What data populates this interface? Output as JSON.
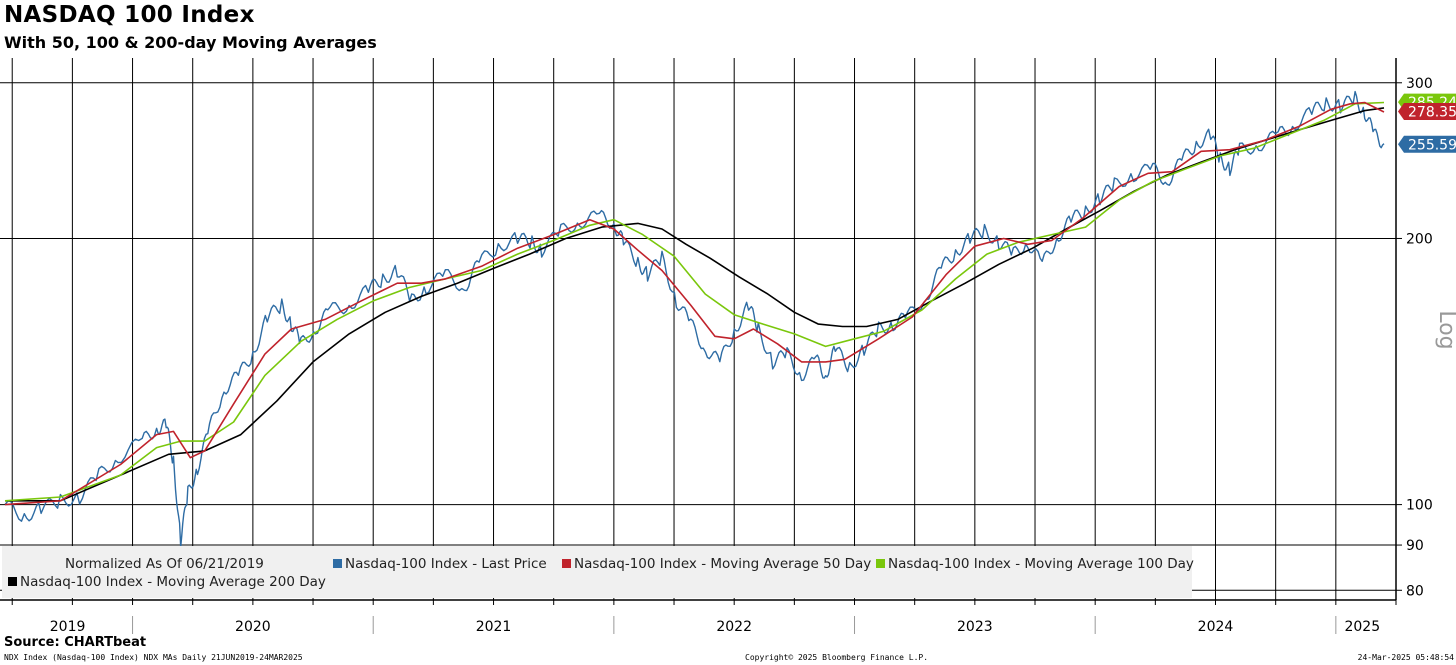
{
  "header": {
    "title": "NASDAQ 100 Index",
    "subtitle": "With 50, 100 & 200-day Moving Averages"
  },
  "footer": {
    "source": "Source: CHARTbeat",
    "left": "NDX Index (Nasdaq-100 Index) NDX MAs  Daily 21JUN2019-24MAR2025",
    "center": "Copyright© 2025 Bloomberg Finance L.P.",
    "right": "24-Mar-2025 05:48:54"
  },
  "legend": {
    "note": "Normalized As Of 06/21/2019",
    "items": [
      {
        "label": "Nasdaq-100 Index - Last Price",
        "color": "#2e6ca4"
      },
      {
        "label": "Nasdaq-100 Index - Moving Average 50 Day",
        "color": "#c0232c"
      },
      {
        "label": "Nasdaq-100 Index - Moving Average 100 Day",
        "color": "#7ac70c"
      },
      {
        "label": "Nasdaq-100 Index - Moving Average 200 Day",
        "color": "#000000"
      }
    ]
  },
  "chart_data": {
    "type": "line",
    "title": "NASDAQ 100 Index",
    "subtitle": "With 50, 100 & 200-day Moving Averages",
    "yscale": "log",
    "ylabel": "Log",
    "ylim": [
      78,
      320
    ],
    "yticks": [
      80,
      90,
      100,
      200,
      300
    ],
    "xlim": [
      2019.47,
      2025.25
    ],
    "year_labels": [
      {
        "label": "2019",
        "x": 2019.73
      },
      {
        "label": "2020",
        "x": 2020.5
      },
      {
        "label": "2021",
        "x": 2021.5
      },
      {
        "label": "2022",
        "x": 2022.5
      },
      {
        "label": "2023",
        "x": 2023.5
      },
      {
        "label": "2024",
        "x": 2024.5
      },
      {
        "label": "2025",
        "x": 2025.11
      }
    ],
    "series": [
      {
        "name": "Nasdaq-100 Index - Last Price",
        "color": "#2e6ca4",
        "last_value": "255.59",
        "points": [
          [
            2019.47,
            100
          ],
          [
            2019.55,
            97
          ],
          [
            2019.62,
            99
          ],
          [
            2019.7,
            101
          ],
          [
            2019.78,
            102
          ],
          [
            2019.86,
            108
          ],
          [
            2019.94,
            113
          ],
          [
            2020.04,
            118
          ],
          [
            2020.1,
            122
          ],
          [
            2020.14,
            123
          ],
          [
            2020.17,
            112
          ],
          [
            2020.2,
            91
          ],
          [
            2020.23,
            103
          ],
          [
            2020.27,
            110
          ],
          [
            2020.32,
            122
          ],
          [
            2020.38,
            135
          ],
          [
            2020.44,
            140
          ],
          [
            2020.5,
            148
          ],
          [
            2020.56,
            163
          ],
          [
            2020.62,
            168
          ],
          [
            2020.66,
            160
          ],
          [
            2020.7,
            152
          ],
          [
            2020.76,
            158
          ],
          [
            2020.82,
            166
          ],
          [
            2020.9,
            168
          ],
          [
            2020.98,
            175
          ],
          [
            2021.04,
            180
          ],
          [
            2021.1,
            184
          ],
          [
            2021.16,
            170
          ],
          [
            2021.22,
            176
          ],
          [
            2021.3,
            182
          ],
          [
            2021.38,
            176
          ],
          [
            2021.44,
            188
          ],
          [
            2021.52,
            196
          ],
          [
            2021.6,
            200
          ],
          [
            2021.66,
            198
          ],
          [
            2021.7,
            194
          ],
          [
            2021.78,
            204
          ],
          [
            2021.86,
            209
          ],
          [
            2021.94,
            212
          ],
          [
            2022.0,
            208
          ],
          [
            2022.04,
            198
          ],
          [
            2022.1,
            188
          ],
          [
            2022.14,
            182
          ],
          [
            2022.2,
            190
          ],
          [
            2022.26,
            170
          ],
          [
            2022.32,
            160
          ],
          [
            2022.38,
            150
          ],
          [
            2022.44,
            145
          ],
          [
            2022.5,
            157
          ],
          [
            2022.56,
            168
          ],
          [
            2022.6,
            158
          ],
          [
            2022.66,
            145
          ],
          [
            2022.72,
            148
          ],
          [
            2022.78,
            140
          ],
          [
            2022.84,
            146
          ],
          [
            2022.88,
            140
          ],
          [
            2022.92,
            150
          ],
          [
            2022.98,
            143
          ],
          [
            2023.04,
            150
          ],
          [
            2023.1,
            158
          ],
          [
            2023.16,
            160
          ],
          [
            2023.22,
            163
          ],
          [
            2023.3,
            172
          ],
          [
            2023.36,
            185
          ],
          [
            2023.42,
            193
          ],
          [
            2023.48,
            200
          ],
          [
            2023.54,
            204
          ],
          [
            2023.6,
            198
          ],
          [
            2023.66,
            192
          ],
          [
            2023.72,
            198
          ],
          [
            2023.78,
            187
          ],
          [
            2023.84,
            200
          ],
          [
            2023.9,
            210
          ],
          [
            2023.96,
            215
          ],
          [
            2024.02,
            222
          ],
          [
            2024.08,
            230
          ],
          [
            2024.16,
            236
          ],
          [
            2024.24,
            240
          ],
          [
            2024.3,
            232
          ],
          [
            2024.36,
            245
          ],
          [
            2024.42,
            256
          ],
          [
            2024.48,
            262
          ],
          [
            2024.52,
            246
          ],
          [
            2024.56,
            240
          ],
          [
            2024.6,
            252
          ],
          [
            2024.68,
            255
          ],
          [
            2024.76,
            262
          ],
          [
            2024.82,
            268
          ],
          [
            2024.9,
            278
          ],
          [
            2024.96,
            285
          ],
          [
            2025.02,
            282
          ],
          [
            2025.08,
            288
          ],
          [
            2025.12,
            278
          ],
          [
            2025.16,
            262
          ],
          [
            2025.2,
            256
          ]
        ]
      },
      {
        "name": "Nasdaq-100 Index - Moving Average 50 Day",
        "color": "#c0232c",
        "last_value": "278.35",
        "points": [
          [
            2019.47,
            100
          ],
          [
            2019.7,
            101
          ],
          [
            2019.95,
            111
          ],
          [
            2020.1,
            120
          ],
          [
            2020.17,
            121
          ],
          [
            2020.24,
            113
          ],
          [
            2020.3,
            115
          ],
          [
            2020.42,
            130
          ],
          [
            2020.55,
            148
          ],
          [
            2020.66,
            158
          ],
          [
            2020.8,
            162
          ],
          [
            2020.95,
            170
          ],
          [
            2021.1,
            178
          ],
          [
            2021.2,
            178
          ],
          [
            2021.3,
            180
          ],
          [
            2021.45,
            186
          ],
          [
            2021.6,
            195
          ],
          [
            2021.75,
            202
          ],
          [
            2021.9,
            210
          ],
          [
            2022.0,
            205
          ],
          [
            2022.1,
            194
          ],
          [
            2022.2,
            184
          ],
          [
            2022.32,
            168
          ],
          [
            2022.42,
            155
          ],
          [
            2022.5,
            154
          ],
          [
            2022.58,
            158
          ],
          [
            2022.68,
            152
          ],
          [
            2022.78,
            145
          ],
          [
            2022.88,
            145
          ],
          [
            2022.96,
            146
          ],
          [
            2023.1,
            154
          ],
          [
            2023.24,
            163
          ],
          [
            2023.38,
            182
          ],
          [
            2023.5,
            196
          ],
          [
            2023.62,
            200
          ],
          [
            2023.72,
            197
          ],
          [
            2023.82,
            199
          ],
          [
            2023.95,
            211
          ],
          [
            2024.1,
            229
          ],
          [
            2024.22,
            237
          ],
          [
            2024.32,
            238
          ],
          [
            2024.44,
            251
          ],
          [
            2024.56,
            252
          ],
          [
            2024.7,
            258
          ],
          [
            2024.85,
            268
          ],
          [
            2024.98,
            280
          ],
          [
            2025.06,
            284
          ],
          [
            2025.12,
            285
          ],
          [
            2025.2,
            278
          ]
        ]
      },
      {
        "name": "Nasdaq-100 Index - Moving Average 100 Day",
        "color": "#7ac70c",
        "last_value": "285.24",
        "points": [
          [
            2019.47,
            101
          ],
          [
            2019.7,
            102
          ],
          [
            2019.95,
            108
          ],
          [
            2020.1,
            116
          ],
          [
            2020.2,
            118
          ],
          [
            2020.3,
            118
          ],
          [
            2020.42,
            124
          ],
          [
            2020.55,
            140
          ],
          [
            2020.7,
            153
          ],
          [
            2020.85,
            162
          ],
          [
            2021.0,
            170
          ],
          [
            2021.15,
            176
          ],
          [
            2021.3,
            180
          ],
          [
            2021.45,
            184
          ],
          [
            2021.6,
            192
          ],
          [
            2021.75,
            199
          ],
          [
            2021.9,
            207
          ],
          [
            2022.0,
            210
          ],
          [
            2022.12,
            202
          ],
          [
            2022.25,
            191
          ],
          [
            2022.38,
            173
          ],
          [
            2022.5,
            164
          ],
          [
            2022.62,
            160
          ],
          [
            2022.75,
            156
          ],
          [
            2022.88,
            151
          ],
          [
            2023.0,
            154
          ],
          [
            2023.12,
            157
          ],
          [
            2023.28,
            166
          ],
          [
            2023.42,
            180
          ],
          [
            2023.55,
            192
          ],
          [
            2023.68,
            198
          ],
          [
            2023.82,
            202
          ],
          [
            2023.96,
            206
          ],
          [
            2024.1,
            221
          ],
          [
            2024.24,
            232
          ],
          [
            2024.38,
            240
          ],
          [
            2024.52,
            248
          ],
          [
            2024.66,
            253
          ],
          [
            2024.8,
            262
          ],
          [
            2024.95,
            272
          ],
          [
            2025.08,
            284
          ],
          [
            2025.2,
            285
          ]
        ]
      },
      {
        "name": "Nasdaq-100 Index - Moving Average 200 Day",
        "color": "#000000",
        "last_value": "",
        "points": [
          [
            2019.47,
            101
          ],
          [
            2019.7,
            101
          ],
          [
            2019.95,
            108
          ],
          [
            2020.15,
            114
          ],
          [
            2020.3,
            115
          ],
          [
            2020.45,
            120
          ],
          [
            2020.6,
            131
          ],
          [
            2020.75,
            145
          ],
          [
            2020.9,
            156
          ],
          [
            2021.05,
            165
          ],
          [
            2021.2,
            172
          ],
          [
            2021.35,
            178
          ],
          [
            2021.5,
            185
          ],
          [
            2021.65,
            192
          ],
          [
            2021.8,
            200
          ],
          [
            2021.95,
            206
          ],
          [
            2022.1,
            208
          ],
          [
            2022.2,
            205
          ],
          [
            2022.3,
            197
          ],
          [
            2022.4,
            190
          ],
          [
            2022.52,
            181
          ],
          [
            2022.64,
            173
          ],
          [
            2022.75,
            165
          ],
          [
            2022.85,
            160
          ],
          [
            2022.95,
            159
          ],
          [
            2023.05,
            159
          ],
          [
            2023.18,
            162
          ],
          [
            2023.32,
            170
          ],
          [
            2023.46,
            178
          ],
          [
            2023.6,
            187
          ],
          [
            2023.74,
            195
          ],
          [
            2023.88,
            205
          ],
          [
            2024.02,
            215
          ],
          [
            2024.16,
            226
          ],
          [
            2024.3,
            236
          ],
          [
            2024.44,
            244
          ],
          [
            2024.58,
            252
          ],
          [
            2024.72,
            259
          ],
          [
            2024.86,
            266
          ],
          [
            2025.0,
            273
          ],
          [
            2025.12,
            279
          ],
          [
            2025.2,
            281
          ]
        ]
      }
    ]
  }
}
